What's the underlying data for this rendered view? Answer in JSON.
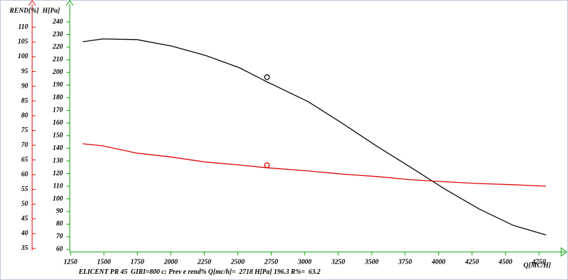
{
  "chart_data": {
    "type": "line",
    "xlabel": "Q[MC/H]",
    "ylabel": "H[Pa]",
    "y2label": "REND[%]",
    "x": [
      1342,
      1490,
      1746,
      2001,
      2257,
      2513,
      2702,
      3024,
      3280,
      3535,
      3791,
      4047,
      4302,
      4558,
      4803
    ],
    "series": [
      {
        "color": "#000000",
        "axis": "y",
        "values": [
          224.3,
          226.5,
          226,
          221,
          213.5,
          203.7,
          193.4,
          177,
          159.8,
          141.9,
          125,
          107.7,
          92,
          79,
          71.4
        ]
      },
      {
        "color": "#e00000",
        "axis": "y2",
        "values": [
          70.5,
          69.8,
          67.3,
          66.0,
          64.3,
          63.3,
          62.4,
          61.3,
          60.2,
          59.4,
          58.3,
          57.6,
          57.0,
          56.6,
          56.1
        ]
      }
    ],
    "xlim": [
      1250,
      4950
    ],
    "xticks": [
      1250,
      1500,
      1750,
      2000,
      2250,
      2500,
      2750,
      3000,
      3250,
      3500,
      3750,
      4000,
      4250,
      4500,
      4750
    ],
    "ylim": [
      58,
      253
    ],
    "yticks": [
      60,
      70,
      80,
      90,
      100,
      110,
      120,
      130,
      140,
      150,
      160,
      170,
      180,
      190,
      200,
      210,
      220,
      230,
      240
    ],
    "y2lim": [
      33.8,
      117.4
    ],
    "y2ticks": [
      35,
      40,
      45,
      50,
      55,
      60,
      65,
      70,
      75,
      80,
      85,
      90,
      95,
      100,
      105,
      110
    ],
    "axis_color": "#00a000",
    "y2_axis_color": "#e00000",
    "operating_point": {
      "q": 2718,
      "h": 196.3,
      "rend": 63.2
    },
    "caption": {
      "prefix": "ELICENT PR 45  GIRI=800 c: Prev e rend% Q[mc/h]=  ",
      "h_label": " H[Pa] ",
      "rend_label": " R%=  "
    }
  }
}
